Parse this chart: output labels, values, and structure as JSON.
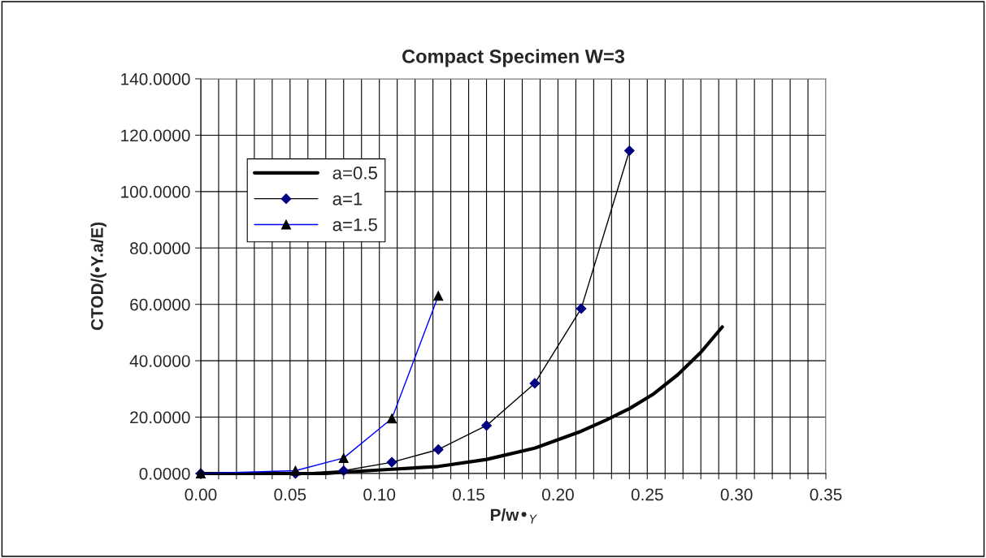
{
  "chart_data": {
    "type": "line",
    "title": "Compact Specimen W=3",
    "xlabel": "P/w•$_{Y}$",
    "ylabel": "CTOD/(•Y.a/E)",
    "xlim": [
      0,
      0.35
    ],
    "ylim": [
      0,
      140
    ],
    "xticks": [
      {
        "value": 0,
        "label": "0.00"
      },
      {
        "value": 0.01,
        "label": null
      },
      {
        "value": 0.02,
        "label": null
      },
      {
        "value": 0.03,
        "label": null
      },
      {
        "value": 0.04,
        "label": null
      },
      {
        "value": 0.05,
        "label": "0.05"
      },
      {
        "value": 0.06,
        "label": null
      },
      {
        "value": 0.07,
        "label": null
      },
      {
        "value": 0.08,
        "label": null
      },
      {
        "value": 0.09,
        "label": null
      },
      {
        "value": 0.1,
        "label": "0.10"
      },
      {
        "value": 0.11,
        "label": null
      },
      {
        "value": 0.12,
        "label": null
      },
      {
        "value": 0.13,
        "label": null
      },
      {
        "value": 0.14,
        "label": null
      },
      {
        "value": 0.15,
        "label": "0.15"
      },
      {
        "value": 0.16,
        "label": null
      },
      {
        "value": 0.17,
        "label": null
      },
      {
        "value": 0.18,
        "label": null
      },
      {
        "value": 0.19,
        "label": null
      },
      {
        "value": 0.2,
        "label": "0.20"
      },
      {
        "value": 0.21,
        "label": null
      },
      {
        "value": 0.22,
        "label": null
      },
      {
        "value": 0.23,
        "label": null
      },
      {
        "value": 0.24,
        "label": null
      },
      {
        "value": 0.25,
        "label": "0.25"
      },
      {
        "value": 0.26,
        "label": null
      },
      {
        "value": 0.27,
        "label": null
      },
      {
        "value": 0.28,
        "label": null
      },
      {
        "value": 0.29,
        "label": null
      },
      {
        "value": 0.3,
        "label": "0.30"
      },
      {
        "value": 0.31,
        "label": null
      },
      {
        "value": 0.32,
        "label": null
      },
      {
        "value": 0.33,
        "label": null
      },
      {
        "value": 0.34,
        "label": null
      },
      {
        "value": 0.35,
        "label": "0.35"
      }
    ],
    "yticks": [
      {
        "value": 0,
        "label": "0.0000"
      },
      {
        "value": 20,
        "label": "20.0000"
      },
      {
        "value": 40,
        "label": "40.0000"
      },
      {
        "value": 60,
        "label": "60.0000"
      },
      {
        "value": 80,
        "label": "80.0000"
      },
      {
        "value": 100,
        "label": "100.0000"
      },
      {
        "value": 120,
        "label": "120.0000"
      },
      {
        "value": 140,
        "label": "140.0000"
      }
    ],
    "grid": true,
    "legend": "top left",
    "series": [
      {
        "name": "a=0.5",
        "color": "#000000",
        "marker": "none",
        "x": [
          0,
          0.053,
          0.07,
          0.08,
          0.107,
          0.133,
          0.16,
          0.187,
          0.213,
          0.227,
          0.24,
          0.253,
          0.267,
          0.28,
          0.292
        ],
        "values": [
          0,
          0,
          0,
          0.5,
          1.5,
          2.5,
          5,
          9,
          15,
          19,
          23,
          28,
          35,
          43,
          52
        ]
      },
      {
        "name": "a=1",
        "color": "#000000",
        "marker": "diamond",
        "x": [
          0,
          0.053,
          0.08,
          0.107,
          0.133,
          0.16,
          0.187,
          0.213,
          0.24
        ],
        "values": [
          0,
          0,
          1,
          4,
          8.5,
          17,
          32,
          58.5,
          114.5
        ]
      },
      {
        "name": "a=1.5",
        "color": "#0000ff",
        "marker": "triangle",
        "x": [
          0,
          0.053,
          0.08,
          0.107,
          0.133
        ],
        "values": [
          0,
          1,
          5.5,
          19.5,
          63
        ]
      }
    ]
  }
}
